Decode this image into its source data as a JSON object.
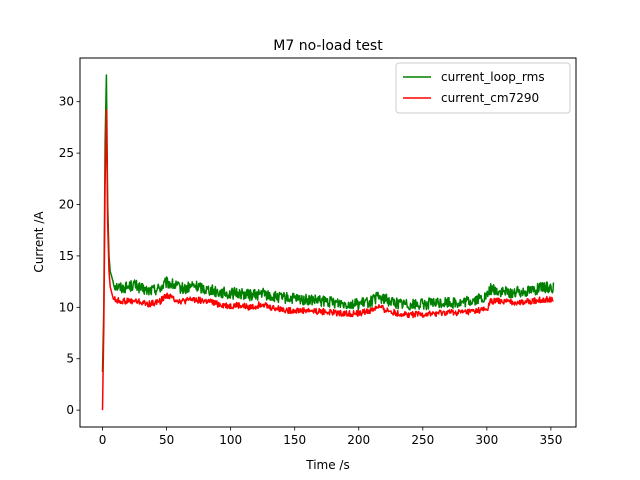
{
  "chart_data": {
    "type": "line",
    "title": "M7 no-load test",
    "xlabel": "Time /s",
    "ylabel": "Current /A",
    "xlim": [
      -17.6,
      369.6
    ],
    "ylim": [
      -1.64,
      34.25
    ],
    "xticks": [
      0,
      50,
      100,
      150,
      200,
      250,
      300,
      350
    ],
    "yticks": [
      0,
      5,
      10,
      15,
      20,
      25,
      30
    ],
    "grid": false,
    "legend_position": "upper-right",
    "series": [
      {
        "name": "current_loop_rms",
        "color": "#008000",
        "x": [
          0,
          1,
          2,
          3,
          4,
          5,
          6,
          8,
          10,
          15,
          20,
          25,
          30,
          35,
          40,
          45,
          50,
          55,
          60,
          65,
          70,
          75,
          80,
          85,
          90,
          95,
          100,
          105,
          110,
          115,
          120,
          125,
          130,
          135,
          140,
          145,
          150,
          160,
          170,
          180,
          190,
          200,
          210,
          215,
          220,
          230,
          240,
          250,
          260,
          270,
          280,
          290,
          300,
          303,
          310,
          320,
          330,
          340,
          350,
          352
        ],
        "y": [
          3.7,
          10,
          26,
          32.6,
          20,
          15,
          13.5,
          12.6,
          12.1,
          11.9,
          12.0,
          12.2,
          11.8,
          11.6,
          11.7,
          11.9,
          12.4,
          12.2,
          11.9,
          11.8,
          12.1,
          12.0,
          11.8,
          11.7,
          11.5,
          11.4,
          11.3,
          11.4,
          11.3,
          11.2,
          11.2,
          11.4,
          11.1,
          11.0,
          10.9,
          10.9,
          10.8,
          10.7,
          10.6,
          10.5,
          10.4,
          10.3,
          10.6,
          11.0,
          10.8,
          10.4,
          10.3,
          10.3,
          10.4,
          10.5,
          10.4,
          10.7,
          11.0,
          11.8,
          11.5,
          11.4,
          11.6,
          11.8,
          12.0,
          11.9
        ]
      },
      {
        "name": "current_cm7290",
        "color": "#ff0000",
        "x": [
          0,
          1,
          2,
          3,
          4,
          5,
          6,
          8,
          10,
          15,
          20,
          25,
          30,
          35,
          40,
          45,
          50,
          55,
          60,
          65,
          70,
          75,
          80,
          85,
          90,
          95,
          100,
          105,
          110,
          115,
          120,
          125,
          130,
          135,
          140,
          145,
          150,
          160,
          170,
          180,
          190,
          200,
          210,
          215,
          220,
          230,
          240,
          250,
          260,
          270,
          280,
          290,
          300,
          303,
          310,
          320,
          330,
          340,
          350,
          352
        ],
        "y": [
          0,
          8,
          22,
          29.2,
          18,
          13.5,
          12.0,
          11.0,
          10.7,
          10.6,
          10.6,
          10.6,
          10.5,
          10.3,
          10.4,
          10.6,
          11.2,
          10.9,
          10.6,
          10.6,
          10.8,
          10.7,
          10.6,
          10.5,
          10.3,
          10.2,
          10.1,
          10.2,
          10.1,
          10.0,
          10.1,
          10.4,
          10.0,
          9.9,
          9.8,
          9.7,
          9.7,
          9.7,
          9.6,
          9.5,
          9.4,
          9.4,
          9.7,
          10.1,
          9.8,
          9.4,
          9.3,
          9.3,
          9.4,
          9.5,
          9.5,
          9.6,
          9.8,
          10.6,
          10.6,
          10.5,
          10.5,
          10.7,
          10.8,
          10.8
        ]
      }
    ]
  }
}
